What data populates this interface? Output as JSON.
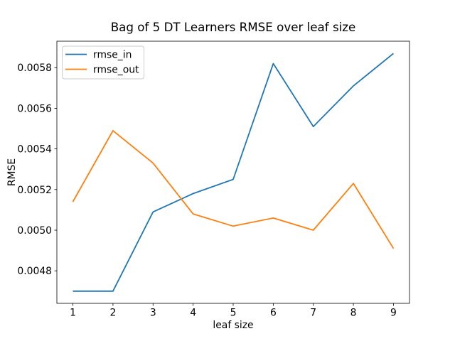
{
  "chart_data": {
    "type": "line",
    "title": "Bag of 5 DT Learners RMSE over leaf size",
    "xlabel": "leaf size",
    "ylabel": "RMSE",
    "x": [
      1,
      2,
      3,
      4,
      5,
      6,
      7,
      8,
      9
    ],
    "series": [
      {
        "name": "rmse_in",
        "color": "#1f77b4",
        "values": [
          0.0047,
          0.0047,
          0.00509,
          0.00518,
          0.00525,
          0.00582,
          0.00551,
          0.00571,
          0.00587
        ]
      },
      {
        "name": "rmse_out",
        "color": "#ff7f0e",
        "values": [
          0.00514,
          0.00549,
          0.00533,
          0.00508,
          0.00502,
          0.00506,
          0.005,
          0.00523,
          0.00491
        ]
      }
    ],
    "xlim": [
      0.6,
      9.4
    ],
    "ylim": [
      0.00464,
      0.00593
    ],
    "xticks": [
      "1",
      "2",
      "3",
      "4",
      "5",
      "6",
      "7",
      "8",
      "9"
    ],
    "yticks": [
      "0.0048",
      "0.0050",
      "0.0052",
      "0.0054",
      "0.0056",
      "0.0058"
    ],
    "grid": false,
    "legend": {
      "position": "upper left",
      "entries": [
        "rmse_in",
        "rmse_out"
      ]
    }
  }
}
